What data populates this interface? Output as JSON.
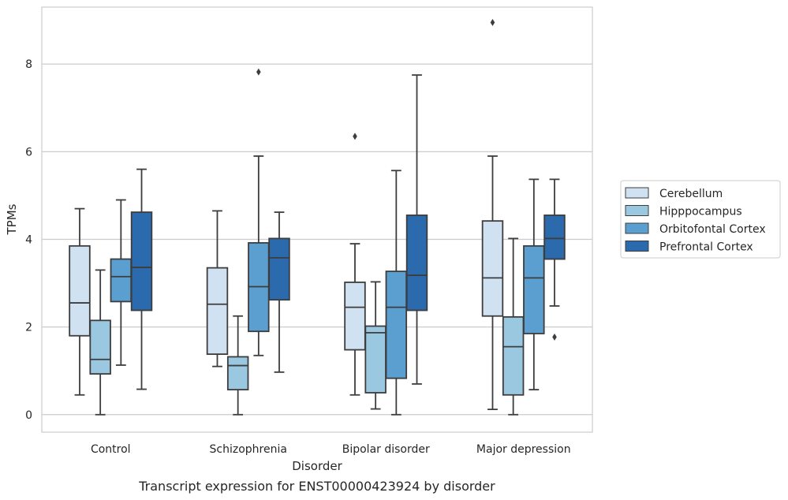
{
  "chart_data": {
    "type": "boxplot",
    "xlabel": "Disorder",
    "ylabel": "TPMs",
    "caption": "Transcript expression for ENST00000423924 by disorder",
    "ylim": [
      -0.4,
      9.3
    ],
    "yticks": [
      0,
      2,
      4,
      6,
      8
    ],
    "grid": "horizontal",
    "legend_position": "right",
    "categories": [
      "Control",
      "Schizophrenia",
      "Bipolar disorder",
      "Major depression"
    ],
    "series": [
      {
        "name": "Cerebellum",
        "color": "#d0e1f2",
        "boxes": [
          {
            "whislo": 0.45,
            "q1": 1.8,
            "med": 2.55,
            "q3": 3.85,
            "whishi": 4.7,
            "fliers": []
          },
          {
            "whislo": 1.1,
            "q1": 1.38,
            "med": 2.52,
            "q3": 3.35,
            "whishi": 4.65,
            "fliers": []
          },
          {
            "whislo": 0.45,
            "q1": 1.48,
            "med": 2.45,
            "q3": 3.02,
            "whishi": 3.9,
            "fliers": [
              6.35
            ]
          },
          {
            "whislo": 0.12,
            "q1": 2.25,
            "med": 3.12,
            "q3": 4.42,
            "whishi": 5.9,
            "fliers": [
              8.95
            ]
          }
        ]
      },
      {
        "name": "Hipppocampus",
        "color": "#9ac8e0",
        "boxes": [
          {
            "whislo": 0.0,
            "q1": 0.93,
            "med": 1.26,
            "q3": 2.15,
            "whishi": 3.3,
            "fliers": []
          },
          {
            "whislo": 0.0,
            "q1": 0.57,
            "med": 1.12,
            "q3": 1.32,
            "whishi": 2.25,
            "fliers": []
          },
          {
            "whislo": 0.13,
            "q1": 0.5,
            "med": 1.87,
            "q3": 2.02,
            "whishi": 3.03,
            "fliers": []
          },
          {
            "whislo": 0.0,
            "q1": 0.45,
            "med": 1.55,
            "q3": 2.23,
            "whishi": 4.02,
            "fliers": []
          }
        ]
      },
      {
        "name": "Orbitofontal Cortex",
        "color": "#5a9fcf",
        "boxes": [
          {
            "whislo": 1.13,
            "q1": 2.58,
            "med": 3.15,
            "q3": 3.55,
            "whishi": 4.9,
            "fliers": []
          },
          {
            "whislo": 1.35,
            "q1": 1.9,
            "med": 2.92,
            "q3": 3.92,
            "whishi": 5.9,
            "fliers": [
              7.82
            ]
          },
          {
            "whislo": 0.0,
            "q1": 0.83,
            "med": 2.45,
            "q3": 3.27,
            "whishi": 5.57,
            "fliers": []
          },
          {
            "whislo": 0.57,
            "q1": 1.85,
            "med": 3.12,
            "q3": 3.85,
            "whishi": 5.37,
            "fliers": []
          }
        ]
      },
      {
        "name": "Prefrontal Cortex",
        "color": "#2a6aad",
        "boxes": [
          {
            "whislo": 0.58,
            "q1": 2.38,
            "med": 3.36,
            "q3": 4.62,
            "whishi": 5.6,
            "fliers": []
          },
          {
            "whislo": 0.97,
            "q1": 2.62,
            "med": 3.58,
            "q3": 4.02,
            "whishi": 4.62,
            "fliers": []
          },
          {
            "whislo": 0.7,
            "q1": 2.38,
            "med": 3.18,
            "q3": 4.55,
            "whishi": 7.75,
            "fliers": []
          },
          {
            "whislo": 2.48,
            "q1": 3.55,
            "med": 4.02,
            "q3": 4.55,
            "whishi": 5.37,
            "fliers": [
              1.77
            ]
          }
        ]
      }
    ]
  }
}
